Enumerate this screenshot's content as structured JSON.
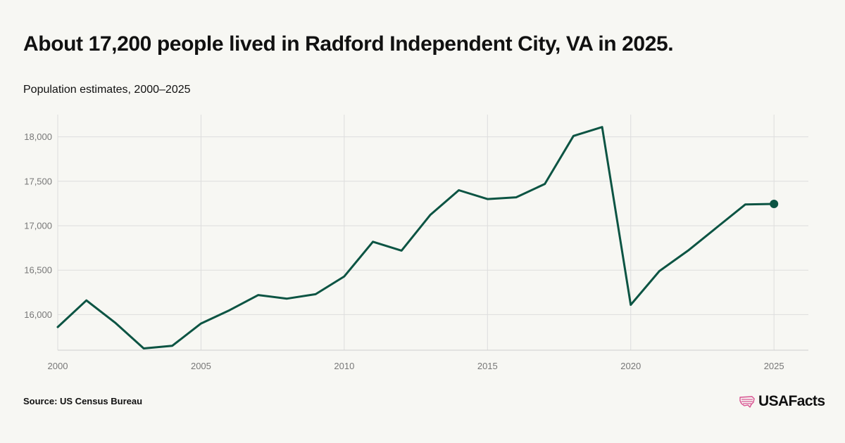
{
  "header": {
    "title": "About 17,200 people lived in Radford Independent City, VA in 2025.",
    "subtitle": "Population estimates, 2000–2025"
  },
  "footer": {
    "source": "Source: US Census Bureau",
    "brand": "USAFacts",
    "brand_icon": "us-flag-map-icon"
  },
  "colors": {
    "line": "#0c5443",
    "grid": "#dddddd",
    "tick_text": "#777777",
    "brand_icon": "#d8508f"
  },
  "chart_data": {
    "type": "line",
    "title": "About 17,200 people lived in Radford Independent City, VA in 2025.",
    "subtitle": "Population estimates, 2000–2025",
    "xlabel": "",
    "ylabel": "",
    "x": [
      2000,
      2001,
      2002,
      2003,
      2004,
      2005,
      2006,
      2007,
      2008,
      2009,
      2010,
      2011,
      2012,
      2013,
      2014,
      2015,
      2016,
      2017,
      2018,
      2019,
      2020,
      2021,
      2022,
      2023,
      2024,
      2025
    ],
    "series": [
      {
        "name": "",
        "values": [
          15860,
          16160,
          15910,
          15620,
          15650,
          15900,
          16050,
          16220,
          16180,
          16230,
          16430,
          16820,
          16720,
          17120,
          17400,
          17300,
          17320,
          17470,
          18010,
          18110,
          16110,
          16490,
          16720,
          16980,
          17240,
          17245
        ]
      }
    ],
    "xticks": [
      2000,
      2005,
      2010,
      2015,
      2020,
      2025
    ],
    "xtick_labels": [
      "2000",
      "2005",
      "2010",
      "2015",
      "2020",
      "2025"
    ],
    "yticks": [
      16000,
      16500,
      17000,
      17500,
      18000
    ],
    "ytick_labels": [
      "16,000",
      "16,500",
      "17,000",
      "17,500",
      "18,000"
    ],
    "xlim": [
      2000,
      2026.2
    ],
    "ylim": [
      15600,
      18250
    ],
    "grid": true,
    "legend": "none",
    "highlight_last_point": true
  }
}
